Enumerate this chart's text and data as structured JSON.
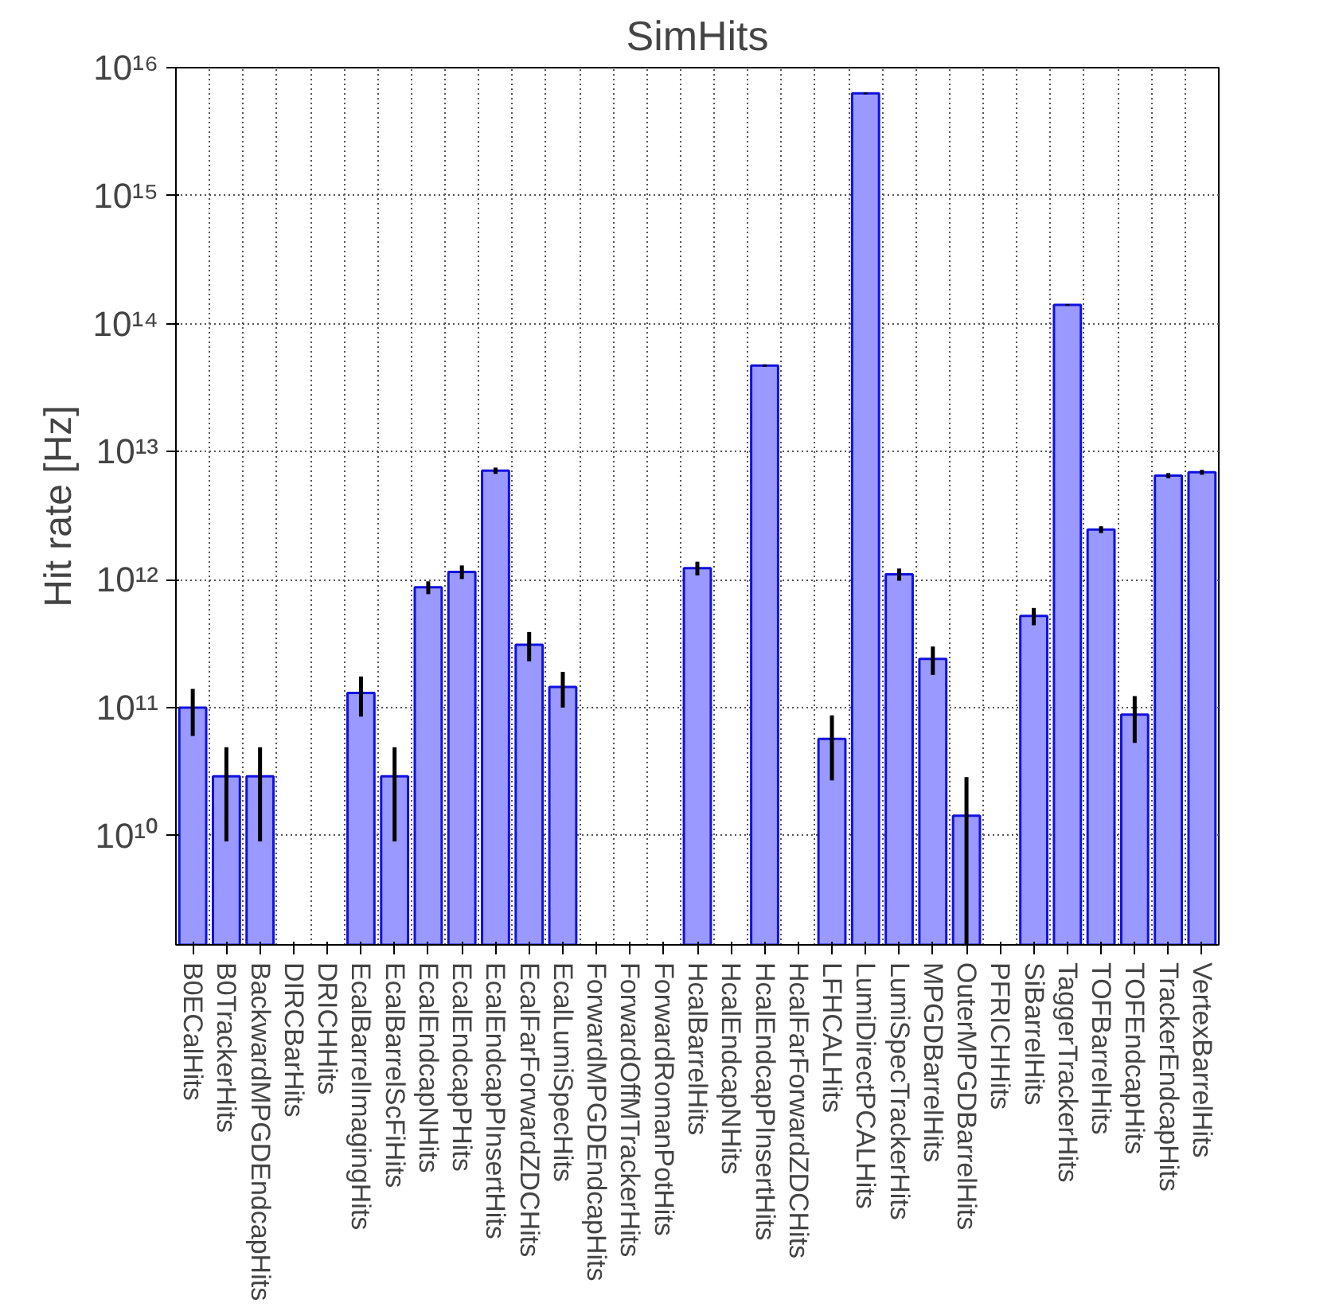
{
  "chart_data": {
    "type": "bar",
    "title": "SimHits",
    "ylabel": "Hit rate [Hz]",
    "categories": [
      "B0ECalHits",
      "B0TrackerHits",
      "BackwardMPGDEndcapHits",
      "DIRCBarHits",
      "DRICHHits",
      "EcalBarrelImagingHits",
      "EcalBarrelScFiHits",
      "EcalEndcapNHits",
      "EcalEndcapPHits",
      "EcalEndcapPInsertHits",
      "EcalFarForwardZDCHits",
      "EcalLumiSpecHits",
      "ForwardMPGDEndcapHits",
      "ForwardOffMTrackerHits",
      "ForwardRomanPotHits",
      "HcalBarrelHits",
      "HcalEndcapNHits",
      "HcalEndcapPInsertHits",
      "HcalFarForwardZDCHits",
      "LFHCALHits",
      "LumiDirectPCALHits",
      "LumiSpecTrackerHits",
      "MPGDBarrelHits",
      "OuterMPGDBarrelHits",
      "PFRICHHits",
      "SiBarrelHits",
      "TaggerTrackerHits",
      "TOFBarrelHits",
      "TOFEndcapHits",
      "TrackerEndcapHits",
      "VertexBarrelHits"
    ],
    "values": [
      100000000000.0,
      29000000000.0,
      29000000000.0,
      null,
      null,
      130000000000.0,
      29000000000.0,
      870000000000.0,
      1150000000000.0,
      7100000000000.0,
      310000000000.0,
      145000000000.0,
      null,
      null,
      null,
      1230000000000.0,
      null,
      47000000000000.0,
      null,
      57000000000.0,
      6300000000000000.0,
      1100000000000.0,
      240000000000.0,
      14300000000.0,
      null,
      520000000000.0,
      140000000000000.0,
      2460000000000.0,
      88000000000.0,
      6500000000000.0,
      6900000000000.0
    ],
    "errors": [
      40000000000.0,
      20000000000.0,
      20000000000.0,
      null,
      null,
      45000000000.0,
      20000000000.0,
      100000000000.0,
      140000000000.0,
      400000000000.0,
      80000000000.0,
      45000000000.0,
      null,
      null,
      null,
      150000000000.0,
      null,
      1000000000000.0,
      null,
      30000000000.0,
      100000000000000.0,
      120000000000.0,
      60000000000.0,
      [
        1400000000.0,
        28600000000.0
      ],
      null,
      80000000000.0,
      2000000000000.0,
      150000000000.0,
      35000000000.0,
      300000000000.0,
      300000000000.0
    ],
    "color": "#9999ff",
    "log": true,
    "ylim": [
      1400000000.0,
      1e+16
    ],
    "yticks": [
      {
        "value": 10000000000.0,
        "label": "10¹⁰"
      },
      {
        "value": 100000000000.0,
        "label": "10¹¹"
      },
      {
        "value": 1000000000000.0,
        "label": "10¹²"
      },
      {
        "value": 10000000000000.0,
        "label": "10¹³"
      },
      {
        "value": 100000000000000.0,
        "label": "10¹⁴"
      },
      {
        "value": 1000000000000000.0,
        "label": "10¹⁵"
      },
      {
        "value": 1e+16,
        "label": "10¹⁶"
      }
    ],
    "grid": true
  }
}
